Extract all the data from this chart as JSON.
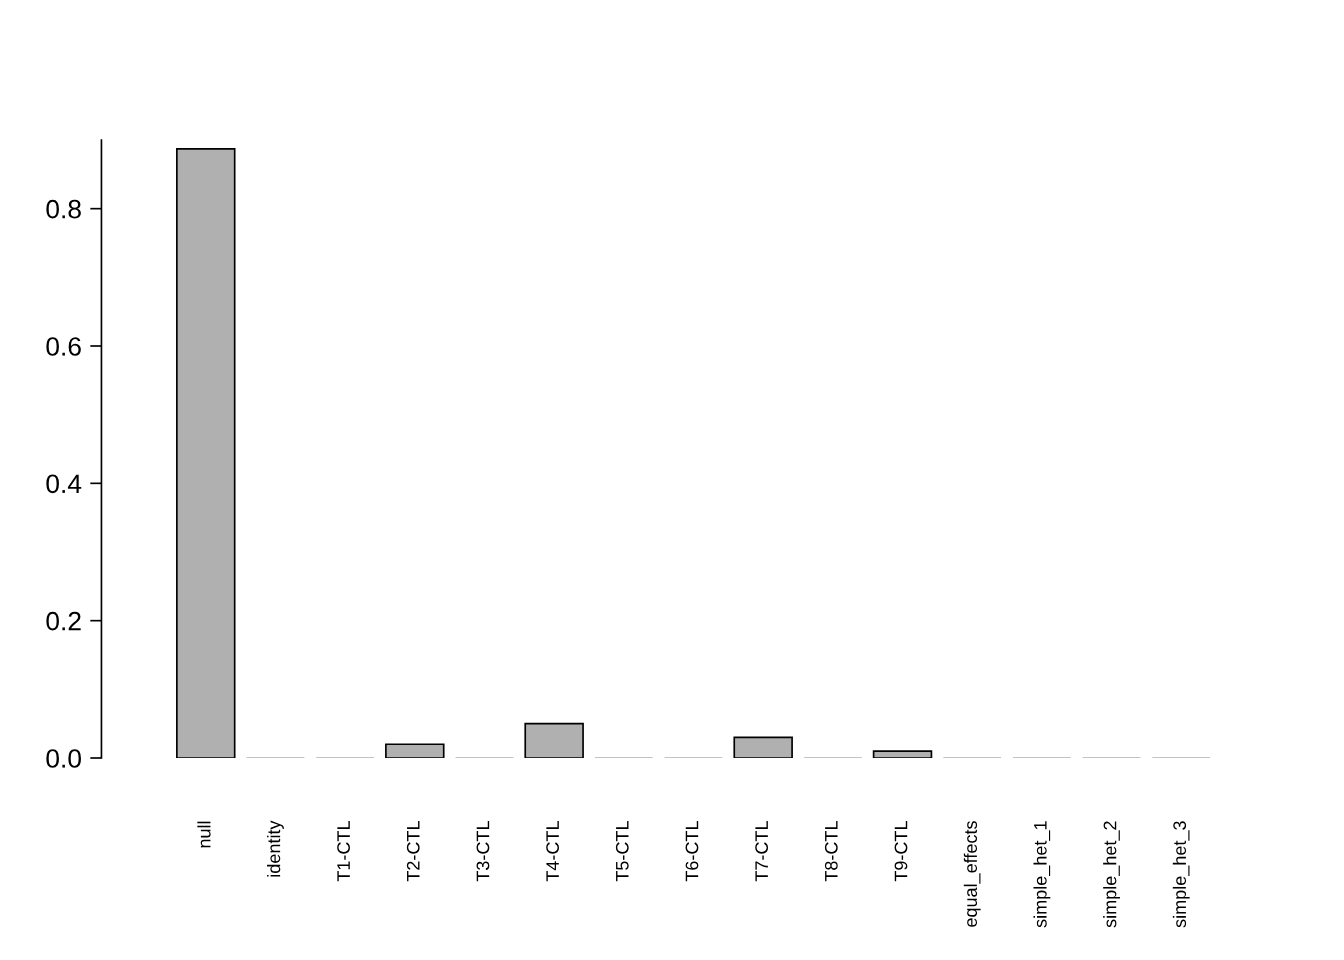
{
  "chart_data": {
    "type": "bar",
    "categories": [
      "null",
      "identity",
      "T1-CTL",
      "T2-CTL",
      "T3-CTL",
      "T4-CTL",
      "T5-CTL",
      "T6-CTL",
      "T7-CTL",
      "T8-CTL",
      "T9-CTL",
      "equal_effects",
      "simple_het_1",
      "simple_het_2",
      "simple_het_3"
    ],
    "values": [
      0.887,
      0,
      0,
      0.02,
      0,
      0.05,
      0,
      0,
      0.03,
      0,
      0.01,
      0,
      0,
      0,
      0
    ],
    "color": "#b0b0b0",
    "ylim": [
      0,
      0.9
    ],
    "yticks": [
      {
        "value": 0,
        "label": "0.0"
      },
      {
        "value": 0.2,
        "label": "0.2"
      },
      {
        "value": 0.4,
        "label": "0.4"
      },
      {
        "value": 0.6,
        "label": "0.6"
      },
      {
        "value": 0.8,
        "label": "0.8"
      }
    ],
    "grid": false
  }
}
